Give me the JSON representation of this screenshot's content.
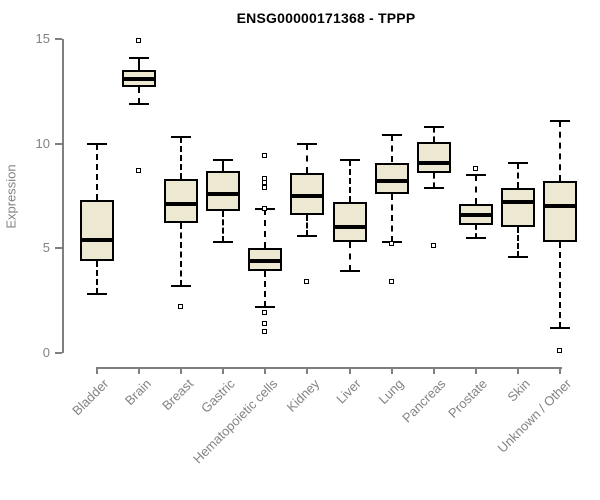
{
  "title": "ENSG00000171368 - TPPP",
  "ylabel": "Expression",
  "colors": {
    "box_fill": "#ede8d1",
    "box_border": "#000000",
    "median": "#000000",
    "axis": "#7f7f7f",
    "axis_text": "#838383",
    "title_text": "#000000",
    "background": "#ffffff"
  },
  "chart_data": {
    "type": "boxplot",
    "title": "ENSG00000171368 - TPPP",
    "xlabel": "",
    "ylabel": "Expression",
    "ylim": [
      0,
      15
    ],
    "yticks": [
      0,
      5,
      10,
      15
    ],
    "grid": false,
    "legend": false,
    "categories": [
      "Bladder",
      "Brain",
      "Breast",
      "Gastric",
      "Hematopoietic cells",
      "Kidney",
      "Liver",
      "Lung",
      "Pancreas",
      "Prostate",
      "Skin",
      "Unknown / Other"
    ],
    "series": [
      {
        "name": "Bladder",
        "whisker_low": 2.8,
        "q1": 4.4,
        "median": 5.4,
        "q3": 7.3,
        "whisker_high": 10.0,
        "outliers": []
      },
      {
        "name": "Brain",
        "whisker_low": 11.9,
        "q1": 12.7,
        "median": 13.1,
        "q3": 13.5,
        "whisker_high": 14.1,
        "outliers": [
          14.9,
          8.7
        ]
      },
      {
        "name": "Breast",
        "whisker_low": 3.2,
        "q1": 6.2,
        "median": 7.1,
        "q3": 8.3,
        "whisker_high": 10.3,
        "outliers": [
          2.2
        ]
      },
      {
        "name": "Gastric",
        "whisker_low": 5.3,
        "q1": 6.8,
        "median": 7.6,
        "q3": 8.7,
        "whisker_high": 9.2,
        "outliers": []
      },
      {
        "name": "Hematopoietic cells",
        "whisker_low": 2.2,
        "q1": 3.9,
        "median": 4.4,
        "q3": 5.0,
        "whisker_high": 6.9,
        "outliers": [
          9.4,
          8.3,
          8.1,
          7.9,
          6.9,
          1.9,
          1.4,
          1.0
        ]
      },
      {
        "name": "Kidney",
        "whisker_low": 5.6,
        "q1": 6.6,
        "median": 7.5,
        "q3": 8.6,
        "whisker_high": 10.0,
        "outliers": [
          3.4
        ]
      },
      {
        "name": "Liver",
        "whisker_low": 3.9,
        "q1": 5.3,
        "median": 6.0,
        "q3": 7.2,
        "whisker_high": 9.2,
        "outliers": []
      },
      {
        "name": "Lung",
        "whisker_low": 5.3,
        "q1": 7.6,
        "median": 8.2,
        "q3": 9.1,
        "whisker_high": 10.4,
        "outliers": [
          5.2,
          3.4
        ]
      },
      {
        "name": "Pancreas",
        "whisker_low": 7.9,
        "q1": 8.6,
        "median": 9.1,
        "q3": 10.1,
        "whisker_high": 10.8,
        "outliers": [
          5.1
        ]
      },
      {
        "name": "Prostate",
        "whisker_low": 5.5,
        "q1": 6.1,
        "median": 6.6,
        "q3": 7.1,
        "whisker_high": 8.5,
        "outliers": [
          8.8
        ]
      },
      {
        "name": "Skin",
        "whisker_low": 4.6,
        "q1": 6.0,
        "median": 7.2,
        "q3": 7.9,
        "whisker_high": 9.1,
        "outliers": []
      },
      {
        "name": "Unknown / Other",
        "whisker_low": 1.2,
        "q1": 5.3,
        "median": 7.0,
        "q3": 8.2,
        "whisker_high": 11.1,
        "outliers": [
          0.1
        ]
      }
    ]
  }
}
